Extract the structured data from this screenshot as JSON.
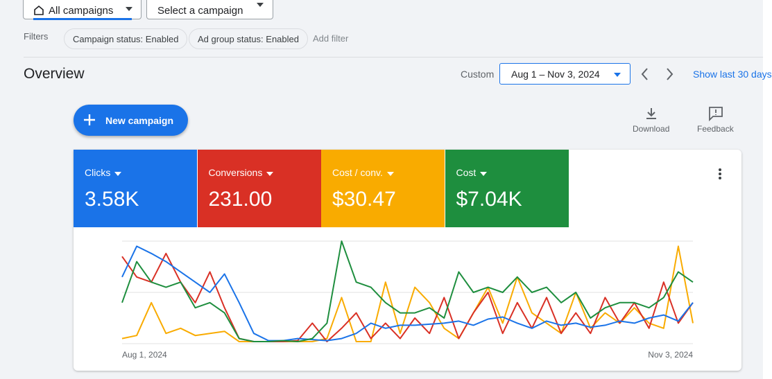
{
  "header": {
    "view_value": "All campaigns",
    "campaign_value": "Select a campaign"
  },
  "filters": {
    "label": "Filters",
    "chips": [
      "Campaign status: Enabled",
      "Ad group status: Enabled"
    ],
    "add": "Add filter"
  },
  "overview": {
    "title": "Overview",
    "range_mode": "Custom",
    "date_range": "Aug 1 – Nov 3, 2024",
    "shortcut": "Show last 30 days",
    "new_campaign": "New campaign",
    "download": "Download",
    "feedback": "Feedback"
  },
  "chart_data": {
    "type": "line",
    "categories": [
      "Aug 1, 2024",
      null,
      null,
      null,
      null,
      null,
      null,
      null,
      null,
      null,
      null,
      null,
      null,
      null,
      null,
      null,
      null,
      null,
      null,
      null,
      null,
      null,
      null,
      null,
      null,
      null,
      null,
      null,
      null,
      null,
      null,
      null,
      null,
      null,
      null,
      null,
      null,
      null,
      null,
      "Nov 3, 2024"
    ],
    "ylim": [
      0,
      100
    ],
    "yticks": [
      0,
      50,
      100
    ],
    "grid": true,
    "series": [
      {
        "name": "Clicks",
        "total": "3.58K",
        "color": "#1a73e8",
        "values": [
          65,
          95,
          88,
          80,
          70,
          60,
          50,
          68,
          40,
          10,
          3,
          3,
          5,
          4,
          3,
          5,
          10,
          20,
          15,
          18,
          18,
          19,
          20,
          22,
          18,
          24,
          26,
          20,
          15,
          22,
          18,
          20,
          16,
          18,
          22,
          20,
          25,
          28,
          22,
          40
        ]
      },
      {
        "name": "Conversions",
        "total": "231.00",
        "color": "#d93025",
        "values": [
          85,
          65,
          60,
          88,
          60,
          40,
          70,
          35,
          5,
          2,
          2,
          2,
          3,
          20,
          2,
          15,
          30,
          5,
          20,
          5,
          25,
          10,
          45,
          5,
          30,
          50,
          10,
          40,
          15,
          45,
          10,
          30,
          10,
          45,
          20,
          40,
          15,
          60,
          20,
          40
        ]
      },
      {
        "name": "Cost / conv.",
        "total": "$30.47",
        "color": "#f9ab00",
        "values": [
          5,
          8,
          40,
          10,
          15,
          8,
          10,
          12,
          2,
          2,
          2,
          2,
          2,
          2,
          5,
          45,
          2,
          2,
          60,
          10,
          55,
          40,
          15,
          5,
          30,
          55,
          20,
          65,
          30,
          20,
          10,
          50,
          15,
          30,
          20,
          35,
          20,
          15,
          95,
          20
        ]
      },
      {
        "name": "Cost",
        "total": "$7.04K",
        "color": "#1e8e3e",
        "values": [
          40,
          80,
          60,
          55,
          60,
          35,
          40,
          30,
          5,
          2,
          2,
          3,
          2,
          5,
          20,
          100,
          60,
          55,
          40,
          30,
          30,
          35,
          25,
          70,
          50,
          55,
          50,
          65,
          50,
          55,
          40,
          50,
          25,
          35,
          40,
          40,
          35,
          45,
          70,
          60
        ]
      }
    ]
  }
}
